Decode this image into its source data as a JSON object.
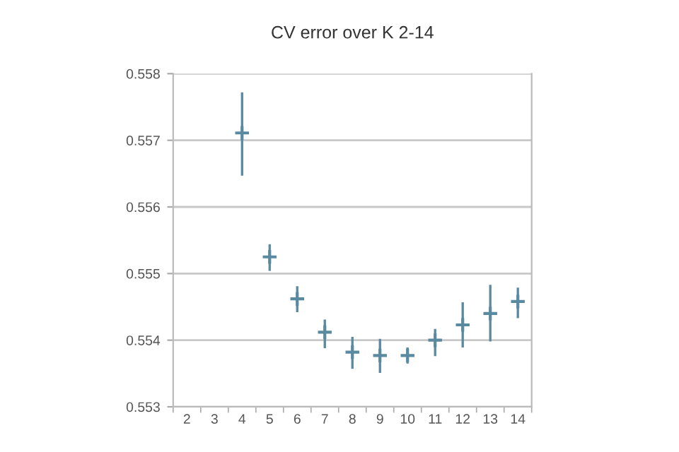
{
  "chart_data": {
    "type": "scatter",
    "title": "CV error over K 2-14",
    "categories": [
      "2",
      "3",
      "4",
      "5",
      "6",
      "7",
      "8",
      "9",
      "10",
      "11",
      "12",
      "13",
      "14"
    ],
    "series": [
      {
        "color": "#5a8aa0",
        "values": [
          null,
          null,
          0.55711,
          0.55525,
          0.55462,
          0.55412,
          0.55382,
          0.55377,
          0.55377,
          0.554,
          0.55423,
          0.5544,
          0.55458
        ],
        "errors": [
          null,
          null,
          [
            0.55647,
            0.55772
          ],
          [
            0.55504,
            0.55544
          ],
          [
            0.55442,
            0.55481
          ],
          [
            0.55388,
            0.55431
          ],
          [
            0.55357,
            0.55405
          ],
          [
            0.55351,
            0.55402
          ],
          [
            0.55365,
            0.55389
          ],
          [
            0.55376,
            0.55417
          ],
          [
            0.55389,
            0.55457
          ],
          [
            0.55398,
            0.55483
          ],
          [
            0.55433,
            0.55479
          ]
        ]
      }
    ],
    "marker": "cross",
    "ylim": [
      0.553,
      0.558
    ],
    "yticks": [
      0.553,
      0.554,
      0.555,
      0.556,
      0.557,
      0.558
    ],
    "grid": "y"
  }
}
